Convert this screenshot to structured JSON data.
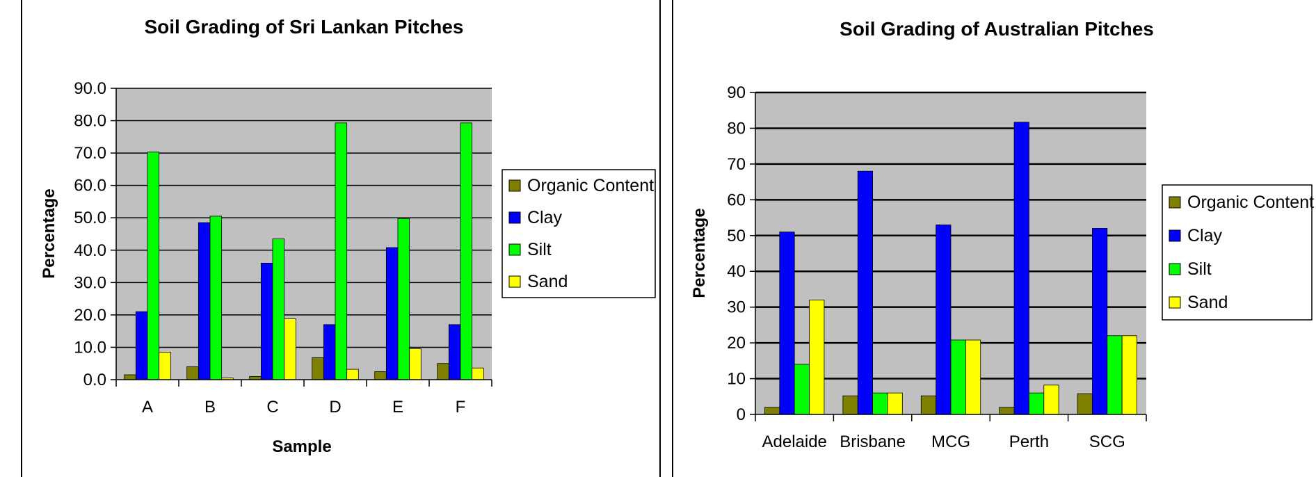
{
  "chart_data": [
    {
      "type": "bar",
      "title": "Soil Grading of Sri Lankan Pitches",
      "xlabel": "Sample",
      "ylabel": "Percentage",
      "categories": [
        "A",
        "B",
        "C",
        "D",
        "E",
        "F"
      ],
      "ylim": [
        0,
        90
      ],
      "yticks": [
        "0.0",
        "10.0",
        "20.0",
        "30.0",
        "40.0",
        "50.0",
        "60.0",
        "70.0",
        "80.0",
        "90.0"
      ],
      "grid": true,
      "legend_position": "right",
      "series": [
        {
          "name": "Organic Content",
          "color": "#808000",
          "values": [
            1.5,
            4.0,
            1.0,
            6.8,
            2.5,
            5.0
          ]
        },
        {
          "name": "Clay",
          "color": "#0000ff",
          "values": [
            21.0,
            48.5,
            36.0,
            17.0,
            40.8,
            17.0
          ]
        },
        {
          "name": "Silt",
          "color": "#00ff00",
          "values": [
            70.3,
            50.5,
            43.5,
            79.3,
            49.8,
            79.3
          ]
        },
        {
          "name": "Sand",
          "color": "#ffff00",
          "values": [
            8.5,
            0.5,
            18.8,
            3.2,
            9.6,
            3.6
          ]
        }
      ]
    },
    {
      "type": "bar",
      "title": "Soil Grading of Australian Pitches",
      "xlabel": "",
      "ylabel": "Percentage",
      "categories": [
        "Adelaide",
        "Brisbane",
        "MCG",
        "Perth",
        "SCG"
      ],
      "ylim": [
        0,
        90
      ],
      "yticks": [
        "0",
        "10",
        "20",
        "30",
        "40",
        "50",
        "60",
        "70",
        "80",
        "90"
      ],
      "grid": true,
      "legend_position": "right",
      "series": [
        {
          "name": "Organic Content",
          "color": "#808000",
          "values": [
            2.0,
            5.2,
            5.2,
            2.0,
            5.8
          ]
        },
        {
          "name": "Clay",
          "color": "#0000ff",
          "values": [
            51.0,
            68.0,
            53.0,
            81.7,
            52.0
          ]
        },
        {
          "name": "Silt",
          "color": "#00ff00",
          "values": [
            14.0,
            6.0,
            20.8,
            6.0,
            22.0
          ]
        },
        {
          "name": "Sand",
          "color": "#ffff00",
          "values": [
            32.0,
            6.0,
            20.8,
            8.2,
            22.0
          ]
        }
      ]
    }
  ]
}
